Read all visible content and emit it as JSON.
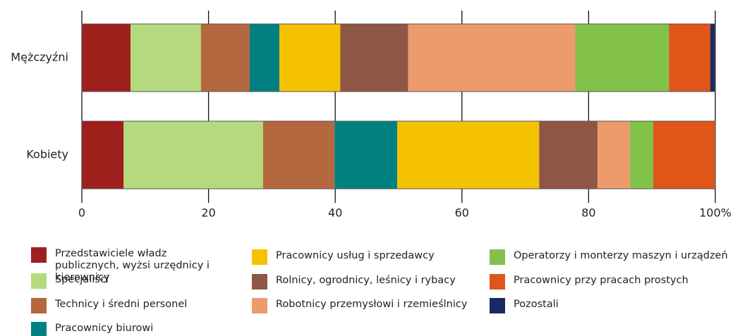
{
  "chart_data": {
    "type": "bar",
    "orientation": "horizontal",
    "stacked": true,
    "categories": [
      "Mężczyźni",
      "Kobiety"
    ],
    "series": [
      {
        "name": "Przedstawiciele władz publicznych, wyżsi urzędnicy i kierownicy",
        "color": "#9e1f1c",
        "values": [
          7.7,
          6.6
        ]
      },
      {
        "name": "Specjaliści",
        "color": "#b5d97e",
        "values": [
          11.1,
          22.0
        ]
      },
      {
        "name": "Technicy i średni personel",
        "color": "#b5673f",
        "values": [
          7.7,
          11.3
        ]
      },
      {
        "name": "Pracownicy biurowi",
        "color": "#008080",
        "values": [
          4.7,
          9.9
        ]
      },
      {
        "name": "Pracownicy usług i sprzedawcy",
        "color": "#f5c200",
        "values": [
          9.6,
          22.4
        ]
      },
      {
        "name": "Rolnicy, ogrodnicy, leśnicy i rybacy",
        "color": "#8f5646",
        "values": [
          10.7,
          9.2
        ]
      },
      {
        "name": "Robotnicy przemysłowi i rzemieślnicy",
        "color": "#ed9b6d",
        "values": [
          26.4,
          5.1
        ]
      },
      {
        "name": "Operatorzy i monterzy maszyn i urządzeń",
        "color": "#82c14a",
        "values": [
          14.8,
          3.7
        ]
      },
      {
        "name": "Pracownicy przy pracach prostych",
        "color": "#e05518",
        "values": [
          6.5,
          9.8
        ]
      },
      {
        "name": "Pozostali",
        "color": "#1a2a5e",
        "values": [
          0.8,
          0
        ]
      }
    ],
    "xlim": [
      0,
      100
    ],
    "xticks": [
      0,
      20,
      40,
      60,
      80,
      {
        "value": 100,
        "label": "100%"
      }
    ],
    "grid": true
  }
}
